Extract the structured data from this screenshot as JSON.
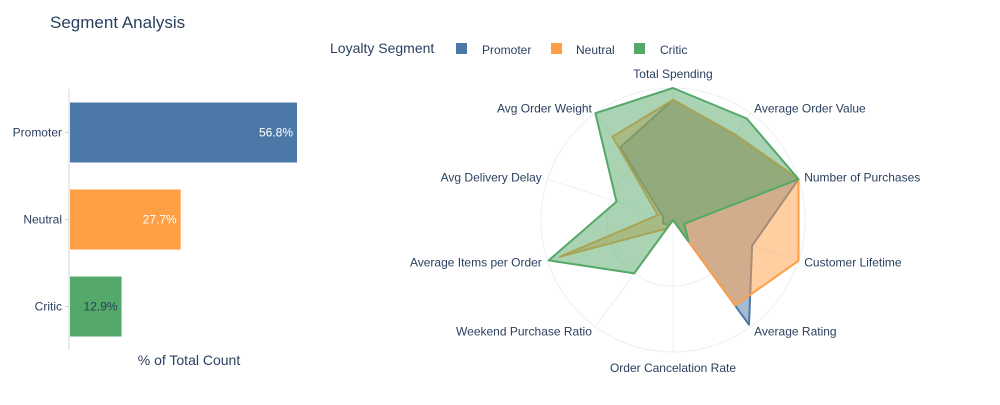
{
  "title": "Segment Analysis",
  "legend": {
    "title": "Loyalty Segment",
    "items": [
      {
        "label": "Promoter",
        "color": "#4C78A8"
      },
      {
        "label": "Neutral",
        "color": "#FF9F45"
      },
      {
        "label": "Critic",
        "color": "#54A868"
      }
    ]
  },
  "chart_data": [
    {
      "type": "bar",
      "orientation": "horizontal",
      "categories": [
        "Promoter",
        "Neutral",
        "Critic"
      ],
      "values": [
        56.8,
        27.7,
        12.9
      ],
      "labels": [
        "56.8%",
        "27.7%",
        "12.9%"
      ],
      "colors": [
        "#4C78A8",
        "#FF9F45",
        "#54A868"
      ],
      "xlabel": "% of Total Count",
      "xlim": [
        0,
        100
      ]
    },
    {
      "type": "radar",
      "axes": [
        "Total Spending",
        "Average Order Value",
        "Number of Purchases",
        "Customer Lifetime",
        "Average Rating",
        "Order Cancelation Rate",
        "Weekend Purchase Ratio",
        "Average Items per Order",
        "Avg Delivery Delay",
        "Avg Order Weight"
      ],
      "rlim": [
        0,
        1
      ],
      "series": [
        {
          "name": "Promoter",
          "color": "#4C78A8",
          "values": [
            0.91,
            0.8,
            1.0,
            0.63,
            0.98,
            0.0,
            0.05,
            0.08,
            0.08,
            0.68
          ]
        },
        {
          "name": "Neutral",
          "color": "#FF9F45",
          "values": [
            0.91,
            0.8,
            1.0,
            1.0,
            0.8,
            0.0,
            0.08,
            0.9,
            0.12,
            0.78
          ]
        },
        {
          "name": "Critic",
          "color": "#54A868",
          "values": [
            1.0,
            0.95,
            1.0,
            0.09,
            0.2,
            0.0,
            0.5,
            0.99,
            0.45,
            1.0
          ]
        }
      ]
    }
  ]
}
